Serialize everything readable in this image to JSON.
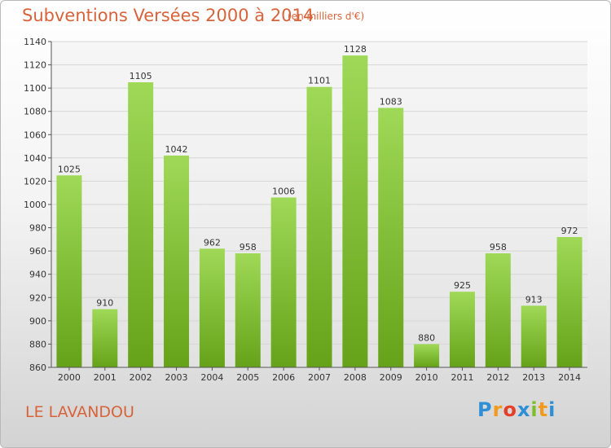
{
  "header": {
    "title": "Subventions Versées 2000 à 2014",
    "unit_note": "(en milliers d'€)"
  },
  "footer": {
    "place": "LE LAVANDOU",
    "logo_letters": [
      {
        "ch": "P",
        "color": "#2f8fd6"
      },
      {
        "ch": "r",
        "color": "#f29a1e"
      },
      {
        "ch": "o",
        "color": "#e53f2a"
      },
      {
        "ch": "x",
        "color": "#2f8fd6"
      },
      {
        "ch": "i",
        "color": "#7dbd2a"
      },
      {
        "ch": "t",
        "color": "#f29a1e"
      },
      {
        "ch": "i",
        "color": "#2f8fd6"
      }
    ]
  },
  "chart_data": {
    "type": "bar",
    "title": "Subventions Versées 2000 à 2014",
    "subtitle": "(en milliers d'€)",
    "categories": [
      "2000",
      "2001",
      "2002",
      "2003",
      "2004",
      "2005",
      "2006",
      "2007",
      "2008",
      "2009",
      "2010",
      "2011",
      "2012",
      "2013",
      "2014"
    ],
    "values": [
      1025,
      910,
      1105,
      1042,
      962,
      958,
      1006,
      1101,
      1128,
      1083,
      880,
      925,
      958,
      913,
      972
    ],
    "ylim": [
      860,
      1140
    ],
    "yticks": [
      860,
      880,
      900,
      920,
      940,
      960,
      980,
      1000,
      1020,
      1040,
      1060,
      1080,
      1100,
      1120,
      1140
    ],
    "grid": true,
    "bar_color": "#7fc434",
    "xlabel": "",
    "ylabel": ""
  }
}
